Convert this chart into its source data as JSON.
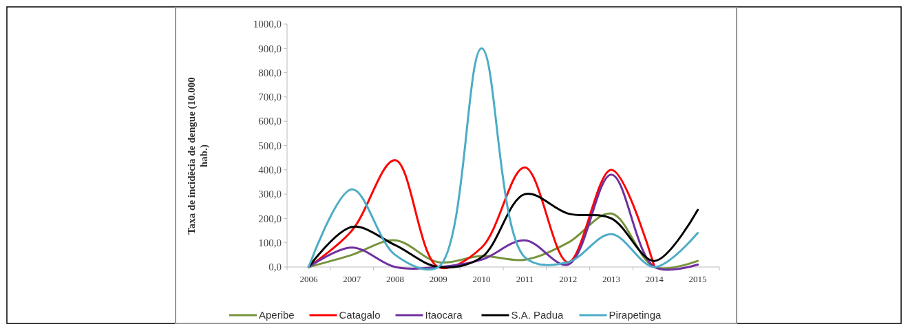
{
  "chart_data": {
    "type": "line",
    "ylabel": "Taxa de incidêcia de dengue (10.000 hab.)",
    "categories": [
      "2006",
      "2007",
      "2008",
      "2009",
      "2010",
      "2011",
      "2012",
      "2013",
      "2014",
      "2015"
    ],
    "series": [
      {
        "name": "Aperibe",
        "color": "#77933c",
        "values": [
          0,
          50,
          110,
          20,
          45,
          30,
          100,
          220,
          0,
          25
        ]
      },
      {
        "name": "Catagalo",
        "color": "#ff0000",
        "values": [
          0,
          150,
          440,
          0,
          80,
          410,
          20,
          400,
          0,
          null
        ]
      },
      {
        "name": "Itaocara",
        "color": "#7030a0",
        "values": [
          0,
          80,
          0,
          0,
          30,
          110,
          10,
          380,
          0,
          10
        ]
      },
      {
        "name": "S.A. Padua",
        "color": "#000000",
        "values": [
          0,
          165,
          90,
          0,
          40,
          300,
          220,
          200,
          25,
          235
        ]
      },
      {
        "name": "Pirapetinga",
        "color": "#4bacc6",
        "values": [
          0,
          320,
          50,
          0,
          900,
          40,
          20,
          135,
          0,
          140
        ]
      }
    ],
    "ylim": [
      0,
      1000
    ],
    "yticks": [
      {
        "value": 0,
        "label": "0,0"
      },
      {
        "value": 100,
        "label": "100,0"
      },
      {
        "value": 200,
        "label": "200,0"
      },
      {
        "value": 300,
        "label": "300,0"
      },
      {
        "value": 400,
        "label": "400,0"
      },
      {
        "value": 500,
        "label": "500,0"
      },
      {
        "value": 600,
        "label": "600,0"
      },
      {
        "value": 700,
        "label": "700,0"
      },
      {
        "value": 800,
        "label": "800,0"
      },
      {
        "value": 900,
        "label": "900,0"
      },
      {
        "value": 1000,
        "label": "1000,0"
      }
    ],
    "grid": false,
    "legend": "bottom",
    "marker": "none",
    "line_style": "solid"
  }
}
